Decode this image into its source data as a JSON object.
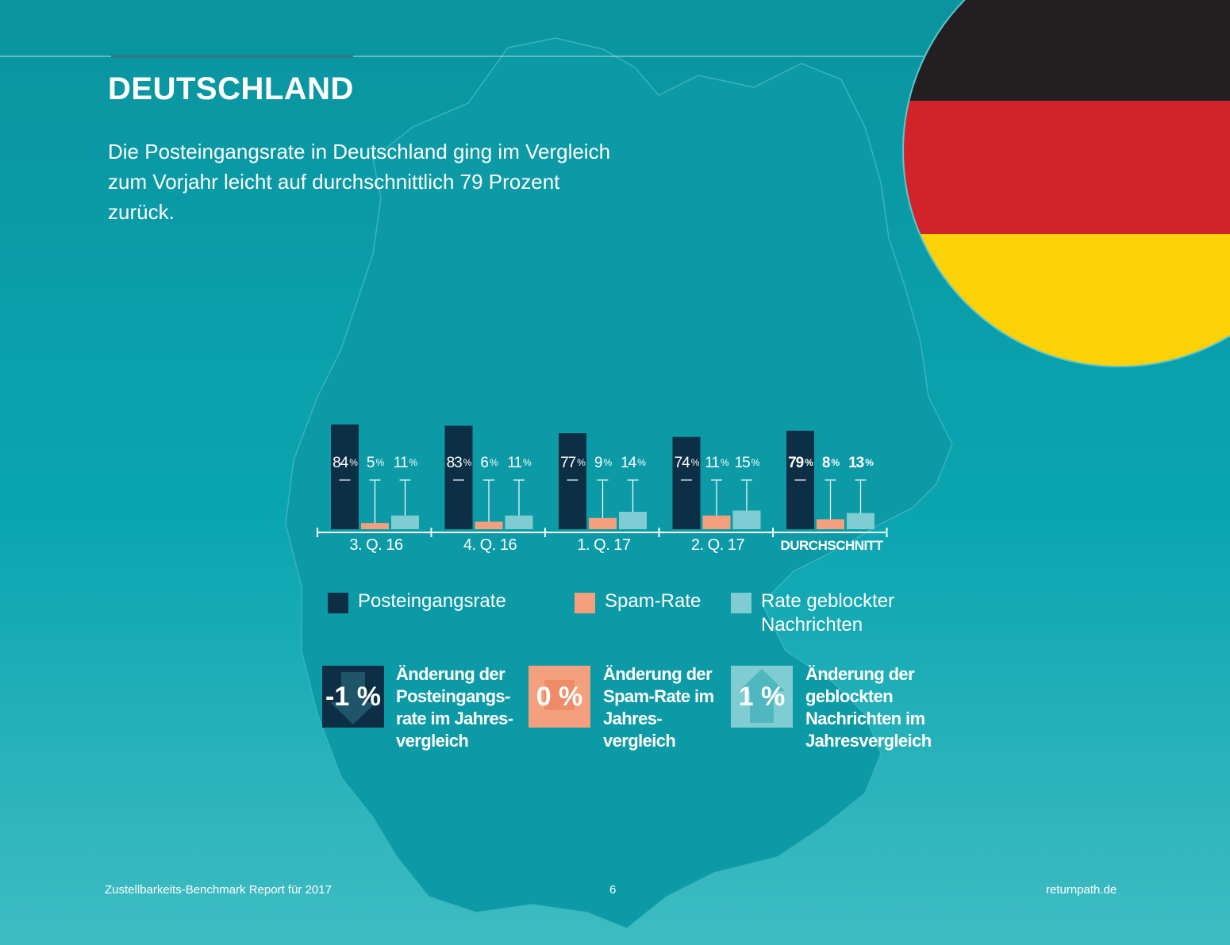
{
  "page": {
    "title": "DEUTSCHLAND",
    "intro": "Die Posteingangsrate in Deutschland ging im Vergleich zum Vorjahr leicht auf durchschnittlich 79 Prozent zurück."
  },
  "chart_data": {
    "type": "bar",
    "categories": [
      "3. Q. 16",
      "4. Q. 16",
      "1. Q. 17",
      "2. Q. 17",
      "DURCHSCHNITT"
    ],
    "series": [
      {
        "name": "Posteingangsrate",
        "values": [
          84,
          83,
          77,
          74,
          79
        ],
        "color": "#0c2f45"
      },
      {
        "name": "Spam-Rate",
        "values": [
          5,
          6,
          9,
          11,
          8
        ],
        "color": "#f4a07e"
      },
      {
        "name": "Rate geblockter Nachrichten",
        "values": [
          11,
          11,
          14,
          15,
          13
        ],
        "color": "#7fcdd3"
      }
    ],
    "unit": "%",
    "ylim": [
      0,
      100
    ],
    "legend_placement": "bottom",
    "grid": false
  },
  "legend": [
    {
      "label": "Posteingangsrate",
      "color": "#0c2f45"
    },
    {
      "label": "Spam-Rate",
      "color": "#f4a07e"
    },
    {
      "label": "Rate geblockter Nachrichten",
      "color": "#7fcdd3"
    }
  ],
  "changes": [
    {
      "value": "-1 %",
      "text": "Änderung der Posteingangs-rate im Jahres-vergleich",
      "color": "#0c2f45",
      "arrow": "down"
    },
    {
      "value": "0 %",
      "text": "Änderung der Spam-Rate im Jahres-vergleich",
      "color": "#f4a07e",
      "arrow": "none"
    },
    {
      "value": "1 %",
      "text": "Änderung der geblockten Nachrichten im Jahresvergleich",
      "color": "#7fcdd3",
      "arrow": "up"
    }
  ],
  "flag": {
    "colors": [
      "#231f20",
      "#d2232a",
      "#fbd108"
    ]
  },
  "footer": {
    "left": "Zustellbarkeits-Benchmark Report für 2017",
    "page_number": "6",
    "right": "returnpath.de"
  }
}
